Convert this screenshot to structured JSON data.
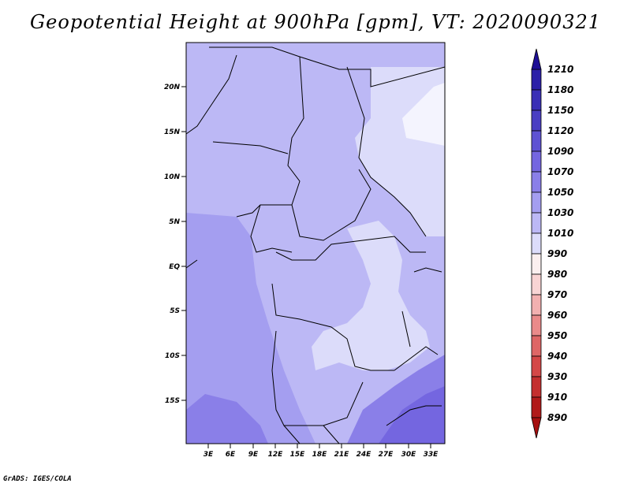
{
  "title": "Geopotential Height at 900hPa [gpm], VT: 2020090321",
  "credit": "GrADS: IGES/COLA",
  "map": {
    "lat_labels": [
      "20N",
      "15N",
      "10N",
      "5N",
      "EQ",
      "5S",
      "10S",
      "15S"
    ],
    "lon_labels": [
      "3E",
      "6E",
      "9E",
      "12E",
      "15E",
      "18E",
      "21E",
      "24E",
      "27E",
      "30E",
      "33E"
    ]
  },
  "colorbar": {
    "labels": [
      "1210",
      "1180",
      "1150",
      "1120",
      "1090",
      "1070",
      "1050",
      "1030",
      "1010",
      "990",
      "980",
      "970",
      "960",
      "950",
      "940",
      "930",
      "910",
      "890"
    ],
    "colors": [
      "#1e0f96",
      "#2b1fa8",
      "#3a2fb6",
      "#4a3ec3",
      "#5e52d3",
      "#7466e0",
      "#8a7fe8",
      "#a49ef0",
      "#bcb8f5",
      "#dcdcfa",
      "#fbefef",
      "#f8d4d4",
      "#f2b0b0",
      "#ea8a8a",
      "#de6666",
      "#d44747",
      "#c42f2f",
      "#b11a1a",
      "#a51010"
    ]
  }
}
